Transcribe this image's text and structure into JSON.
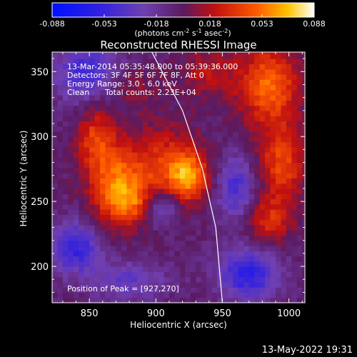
{
  "chart_data": {
    "type": "heatmap",
    "title": "Reconstructed RHESSI Image",
    "xlabel": "Heliocentric X (arcsec)",
    "ylabel": "Heliocentric Y (arcsec)",
    "xlim": [
      822,
      1012
    ],
    "ylim": [
      172,
      365
    ],
    "x_ticks": [
      850,
      900,
      950,
      1000
    ],
    "y_ticks": [
      200,
      250,
      300,
      350
    ],
    "colorbar": {
      "range": [
        -0.088,
        0.088
      ],
      "ticks": [
        "-0.088",
        "-0.053",
        "-0.018",
        "0.018",
        "0.053",
        "0.088"
      ],
      "units_label": "(photons cm",
      "units_exp1": "-2",
      "units_mid1": " s",
      "units_exp2": "-1",
      "units_mid2": " asec",
      "units_exp3": "-2",
      "units_end": ")"
    },
    "annotations": [
      "13-Mar-2014 05:35:48.000 to 05:39:36.000",
      "Detectors: 3F 4F 5F 6F 7F 8F, Att 0",
      "Energy Range: 3.0 - 6.0 keV",
      "Clean",
      "Total counts: 2.23E+04"
    ],
    "peak_label": "Position of Peak = [927,270]",
    "peak": [
      927,
      270
    ],
    "sources": [
      {
        "x": 925,
        "y": 270,
        "sx": 10,
        "sy": 13,
        "a": 0.055
      },
      {
        "x": 905,
        "y": 276,
        "sx": 18,
        "sy": 22,
        "a": 0.04
      },
      {
        "x": 870,
        "y": 262,
        "sx": 14,
        "sy": 22,
        "a": 0.055
      },
      {
        "x": 855,
        "y": 300,
        "sx": 10,
        "sy": 18,
        "a": 0.04
      },
      {
        "x": 885,
        "y": 248,
        "sx": 12,
        "sy": 10,
        "a": 0.03
      },
      {
        "x": 903,
        "y": 246,
        "sx": 10,
        "sy": 10,
        "a": -0.045
      },
      {
        "x": 985,
        "y": 340,
        "sx": 16,
        "sy": 22,
        "a": 0.055
      },
      {
        "x": 995,
        "y": 280,
        "sx": 12,
        "sy": 20,
        "a": 0.045
      },
      {
        "x": 985,
        "y": 235,
        "sx": 12,
        "sy": 14,
        "a": 0.035
      },
      {
        "x": 940,
        "y": 350,
        "sx": 14,
        "sy": 14,
        "a": 0.025
      },
      {
        "x": 880,
        "y": 340,
        "sx": 16,
        "sy": 12,
        "a": 0.02
      },
      {
        "x": 850,
        "y": 350,
        "sx": 18,
        "sy": 18,
        "a": -0.045
      },
      {
        "x": 840,
        "y": 215,
        "sx": 14,
        "sy": 14,
        "a": -0.05
      },
      {
        "x": 970,
        "y": 195,
        "sx": 16,
        "sy": 14,
        "a": -0.055
      },
      {
        "x": 960,
        "y": 260,
        "sx": 10,
        "sy": 18,
        "a": -0.04
      },
      {
        "x": 880,
        "y": 190,
        "sx": 20,
        "sy": 10,
        "a": -0.03
      }
    ],
    "limb_curve": [
      [
        897,
        365
      ],
      [
        920,
        320
      ],
      [
        935,
        275
      ],
      [
        945,
        230
      ],
      [
        950,
        172
      ]
    ],
    "footer_date": "13-May-2022 19:31"
  }
}
